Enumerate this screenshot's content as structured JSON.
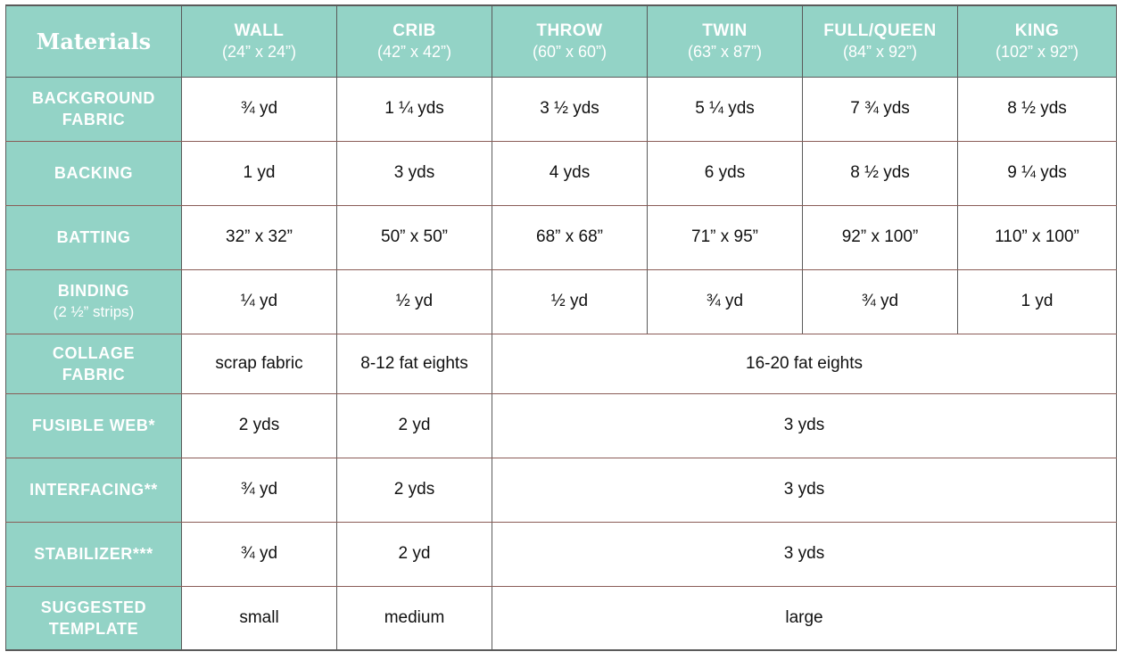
{
  "header": {
    "title": "Materials",
    "columns": [
      {
        "name": "WALL",
        "size": "(24” x 24”)"
      },
      {
        "name": "CRIB",
        "size": "(42” x 42”)"
      },
      {
        "name": "THROW",
        "size": "(60” x 60”)"
      },
      {
        "name": "TWIN",
        "size": "(63” x 87”)"
      },
      {
        "name": "FULL/QUEEN",
        "size": "(84” x 92”)"
      },
      {
        "name": "KING",
        "size": "(102” x 92”)"
      }
    ]
  },
  "rows": [
    {
      "label": "BACKGROUND FABRIC",
      "cells": [
        "¾ yd",
        "1 ¼ yds",
        "3 ½ yds",
        "5 ¼ yds",
        "7 ¾ yds",
        "8 ½ yds"
      ]
    },
    {
      "label": "BACKING",
      "cells": [
        "1 yd",
        "3 yds",
        "4 yds",
        "6 yds",
        "8 ½ yds",
        "9 ¼ yds"
      ]
    },
    {
      "label": "BATTING",
      "cells": [
        "32” x 32”",
        "50” x 50”",
        "68” x 68”",
        "71” x 95”",
        "92” x 100”",
        "110” x 100”"
      ]
    },
    {
      "label": "BINDING",
      "sublabel": "(2 ½” strips)",
      "cells": [
        "¼ yd",
        "½ yd",
        "½ yd",
        "¾ yd",
        "¾ yd",
        "1 yd"
      ]
    },
    {
      "label": "COLLAGE FABRIC",
      "cells": [
        "scrap fabric",
        "8-12 fat eights",
        "16-20 fat eights"
      ]
    },
    {
      "label": "FUSIBLE WEB*",
      "cells": [
        "2 yds",
        "2 yd",
        "3 yds"
      ]
    },
    {
      "label": "INTERFACING**",
      "cells": [
        "¾ yd",
        "2 yds",
        "3 yds"
      ]
    },
    {
      "label": "STABILIZER***",
      "cells": [
        "¾ yd",
        "2 yd",
        "3 yds"
      ]
    },
    {
      "label": "SUGGESTED TEMPLATE",
      "cells": [
        "small",
        "medium",
        "large"
      ]
    }
  ],
  "colors": {
    "header_bg": "#93d3c6",
    "header_text": "#ffffff",
    "row_border": "#8a5c57",
    "col_border": "#5a5a5a"
  }
}
